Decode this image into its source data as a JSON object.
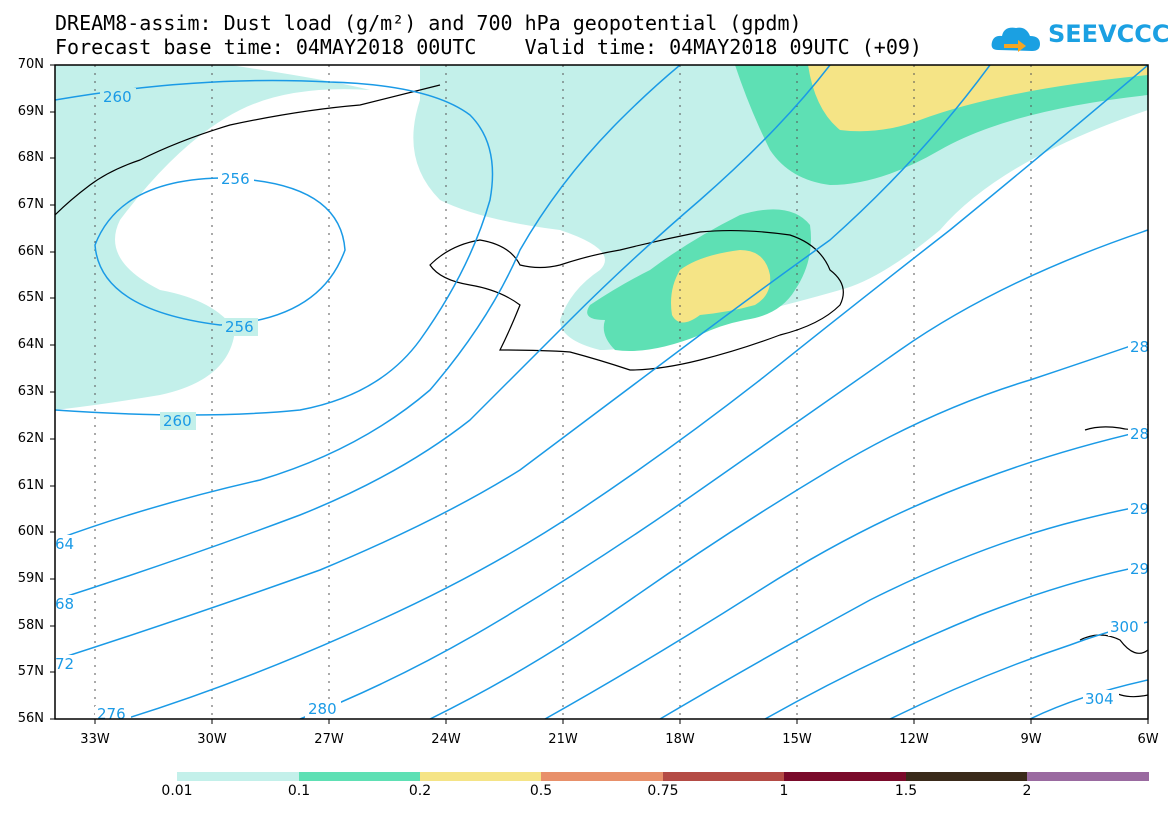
{
  "header": {
    "title_line1": "DREAM8-assim: Dust load (g/m²) and 700 hPa geopotential (gpdm)",
    "title_line2": "Forecast base time: 04MAY2018 00UTC    Valid time: 04MAY2018 09UTC (+09)",
    "logo_text": "SEEVCCC"
  },
  "map": {
    "lat_labels": [
      "70N",
      "69N",
      "68N",
      "67N",
      "66N",
      "65N",
      "64N",
      "63N",
      "62N",
      "61N",
      "60N",
      "59N",
      "58N",
      "57N",
      "56N"
    ],
    "lon_labels": [
      "33W",
      "30W",
      "27W",
      "24W",
      "21W",
      "18W",
      "15W",
      "12W",
      "9W",
      "6W"
    ],
    "contour_labels": [
      "260",
      "256",
      "256",
      "260",
      "64",
      "68",
      "72",
      "276",
      "280",
      "28",
      "28",
      "29",
      "29",
      "300",
      "304"
    ],
    "contour_color": "#1a9ae6",
    "coast_color": "#000000"
  },
  "colorbar": {
    "labels": [
      "0.01",
      "0.1",
      "0.2",
      "0.5",
      "0.75",
      "1",
      "1.5",
      "2"
    ],
    "colors": [
      "#c3f0ea",
      "#5ee0b4",
      "#f5e486",
      "#e8906a",
      "#b44b45",
      "#7a0a2a",
      "#3a2a1a",
      "#9a6aa0"
    ]
  }
}
